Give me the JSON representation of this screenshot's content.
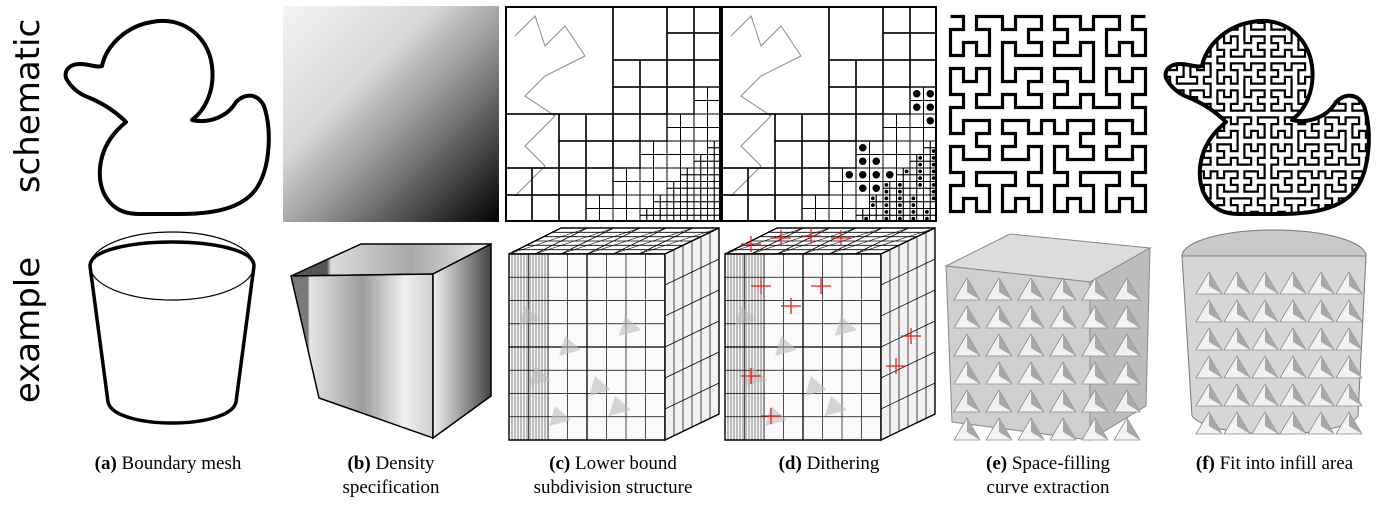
{
  "rows": {
    "schematic": "schematic",
    "example": "example"
  },
  "captions": [
    {
      "letter": "(a)",
      "text": "Boundary mesh"
    },
    {
      "letter": "(b)",
      "text": "Density specification"
    },
    {
      "letter": "(c)",
      "text": "Lower bound subdivision structure"
    },
    {
      "letter": "(d)",
      "text": "Dithering"
    },
    {
      "letter": "(e)",
      "text": "Space-filling curve extraction"
    },
    {
      "letter": "(f)",
      "text": "Fit into infill area"
    }
  ]
}
